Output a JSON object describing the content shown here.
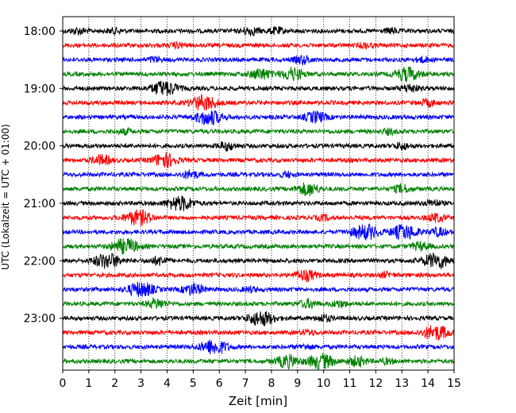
{
  "chart_data": {
    "type": "line",
    "subtype": "helicorder",
    "xlabel": "Zeit  [min]",
    "ylabel": "UTC (Lokalzeit = UTC + 01:00)",
    "xlim": [
      0,
      15
    ],
    "x_ticks": [
      "0",
      "1",
      "2",
      "3",
      "4",
      "5",
      "6",
      "7",
      "8",
      "9",
      "10",
      "11",
      "12",
      "13",
      "14",
      "15"
    ],
    "y_tick_labels": [
      "18:00",
      "19:00",
      "20:00",
      "21:00",
      "22:00",
      "23:00"
    ],
    "y_tick_rows": [
      0,
      4,
      8,
      12,
      16,
      20
    ],
    "grid": "vertical dotted at each minute",
    "line_minutes": 15,
    "trace_colors": [
      "#000000",
      "#ff0000",
      "#0000ff",
      "#008000"
    ],
    "traces": [
      {
        "start": "18:00",
        "color": "#000000",
        "events": [
          [
            0.6,
            0.4
          ],
          [
            2.0,
            0.3
          ],
          [
            7.2,
            0.5
          ],
          [
            8.2,
            0.4
          ],
          [
            12.6,
            0.3
          ]
        ]
      },
      {
        "start": "18:15",
        "color": "#ff0000",
        "events": [
          [
            4.4,
            0.3
          ],
          [
            11.6,
            0.3
          ]
        ]
      },
      {
        "start": "18:30",
        "color": "#0000ff",
        "events": [
          [
            3.5,
            0.3
          ],
          [
            9.2,
            0.5
          ],
          [
            13.8,
            0.3
          ]
        ]
      },
      {
        "start": "18:45",
        "color": "#008000",
        "events": [
          [
            7.6,
            0.7
          ],
          [
            8.8,
            0.8
          ],
          [
            13.2,
            0.9
          ]
        ]
      },
      {
        "start": "19:00",
        "color": "#000000",
        "events": [
          [
            3.9,
            1.0
          ],
          [
            13.3,
            0.5
          ]
        ]
      },
      {
        "start": "19:15",
        "color": "#ff0000",
        "events": [
          [
            5.4,
            1.0
          ],
          [
            14.0,
            0.4
          ]
        ]
      },
      {
        "start": "19:30",
        "color": "#0000ff",
        "events": [
          [
            5.6,
            1.0
          ],
          [
            9.7,
            0.7
          ]
        ]
      },
      {
        "start": "19:45",
        "color": "#008000",
        "events": [
          [
            2.4,
            0.3
          ],
          [
            12.5,
            0.3
          ]
        ]
      },
      {
        "start": "20:00",
        "color": "#000000",
        "events": [
          [
            6.3,
            0.5
          ],
          [
            13.0,
            0.4
          ]
        ]
      },
      {
        "start": "20:15",
        "color": "#ff0000",
        "events": [
          [
            1.5,
            0.6
          ],
          [
            3.9,
            0.9
          ]
        ]
      },
      {
        "start": "20:30",
        "color": "#0000ff",
        "events": [
          [
            4.9,
            0.5
          ],
          [
            8.6,
            0.3
          ]
        ]
      },
      {
        "start": "20:45",
        "color": "#008000",
        "events": [
          [
            9.4,
            0.8
          ],
          [
            13.0,
            0.5
          ]
        ]
      },
      {
        "start": "21:00",
        "color": "#000000",
        "events": [
          [
            4.5,
            1.0
          ],
          [
            14.2,
            0.4
          ]
        ]
      },
      {
        "start": "21:15",
        "color": "#ff0000",
        "events": [
          [
            2.9,
            1.0
          ],
          [
            10.0,
            0.3
          ],
          [
            14.3,
            0.5
          ]
        ]
      },
      {
        "start": "21:30",
        "color": "#0000ff",
        "events": [
          [
            11.6,
            1.0
          ],
          [
            13.1,
            1.0
          ],
          [
            14.4,
            0.5
          ]
        ]
      },
      {
        "start": "21:45",
        "color": "#008000",
        "events": [
          [
            2.4,
            1.0
          ],
          [
            13.7,
            0.5
          ]
        ]
      },
      {
        "start": "22:00",
        "color": "#000000",
        "events": [
          [
            1.7,
            1.0
          ],
          [
            3.7,
            0.5
          ],
          [
            14.3,
            1.0
          ]
        ]
      },
      {
        "start": "22:15",
        "color": "#ff0000",
        "events": [
          [
            9.3,
            0.7
          ],
          [
            12.4,
            0.3
          ]
        ]
      },
      {
        "start": "22:30",
        "color": "#0000ff",
        "events": [
          [
            3.0,
            1.0
          ],
          [
            5.0,
            0.7
          ],
          [
            7.2,
            0.3
          ]
        ]
      },
      {
        "start": "22:45",
        "color": "#008000",
        "events": [
          [
            3.6,
            0.6
          ],
          [
            9.4,
            0.5
          ],
          [
            10.6,
            0.4
          ]
        ]
      },
      {
        "start": "23:00",
        "color": "#000000",
        "events": [
          [
            7.6,
            1.0
          ],
          [
            10.0,
            0.4
          ]
        ]
      },
      {
        "start": "23:15",
        "color": "#ff0000",
        "events": [
          [
            9.4,
            0.3
          ],
          [
            14.3,
            1.0
          ]
        ]
      },
      {
        "start": "23:30",
        "color": "#0000ff",
        "events": [
          [
            5.8,
            1.0
          ],
          [
            9.3,
            0.3
          ]
        ]
      },
      {
        "start": "23:45",
        "color": "#008000",
        "events": [
          [
            8.6,
            0.8
          ],
          [
            9.9,
            1.0
          ],
          [
            11.3,
            0.6
          ],
          [
            12.4,
            0.3
          ]
        ]
      }
    ]
  }
}
